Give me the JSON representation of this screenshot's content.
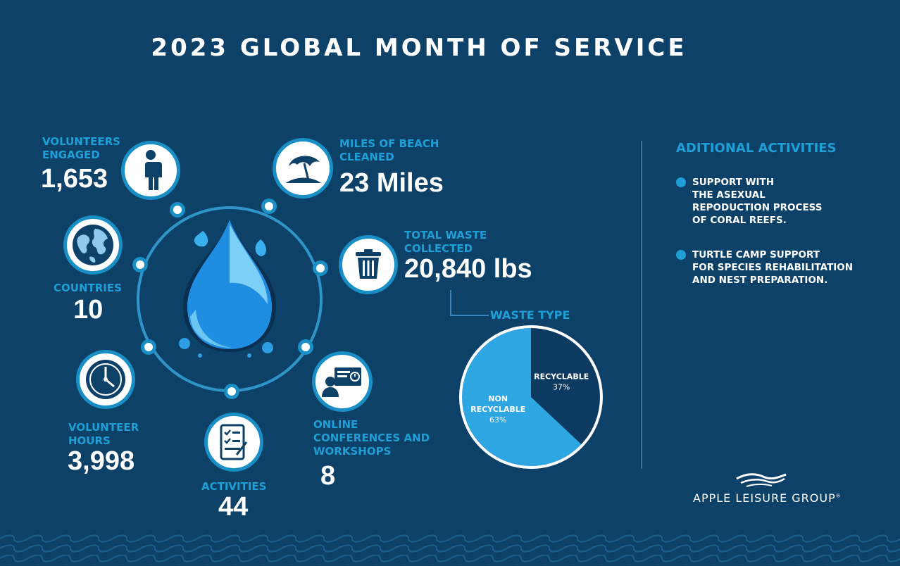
{
  "title": "2023 GLOBAL MONTH OF SERVICE",
  "colors": {
    "background": "#0d4168",
    "accent": "#1f9fd6",
    "ring": "#1a8fc6",
    "recyclable": "#0d3a60",
    "non_recyclable": "#2ea6e2"
  },
  "stats": {
    "volunteers": {
      "label": "VOLUNTEERS ENGAGED",
      "value": "1,653",
      "icon": "person-icon"
    },
    "beach": {
      "label": "MILES OF BEACH CLEANED",
      "value": "23 Miles",
      "icon": "beach-umbrella-icon"
    },
    "countries": {
      "label": "COUNTRIES",
      "value": "10",
      "icon": "globe-icon"
    },
    "waste": {
      "label": "TOTAL WASTE COLLECTED",
      "value": "20,840 lbs",
      "icon": "trash-can-icon"
    },
    "hours": {
      "label": "VOLUNTEER HOURS",
      "value": "3,998",
      "icon": "clock-icon"
    },
    "online": {
      "label": "ONLINE CONFERENCES AND WORKSHOPS",
      "value": "8",
      "icon": "presentation-icon"
    },
    "activities": {
      "label": "ACTIVITIES",
      "value": "44",
      "icon": "checklist-icon"
    }
  },
  "chart_data": {
    "type": "pie",
    "title": "WASTE TYPE",
    "slices": [
      {
        "label": "RECYCLABLE",
        "value": 37,
        "display": "37%"
      },
      {
        "label": "NON RECYCLABLE",
        "value": 63,
        "display": "63%"
      }
    ]
  },
  "additional": {
    "title": "ADITIONAL ACTIVITIES",
    "items": [
      "SUPPORT WITH\nTHE ASEXUAL\nREPODUCTION PROCESS\nOF CORAL REEFS.",
      "TURTLE CAMP SUPPORT\nFOR SPECIES REHABILITATION\nAND NEST PREPARATION."
    ]
  },
  "brand": {
    "name": "APPLE LEISURE GROUP",
    "mark": "®"
  }
}
